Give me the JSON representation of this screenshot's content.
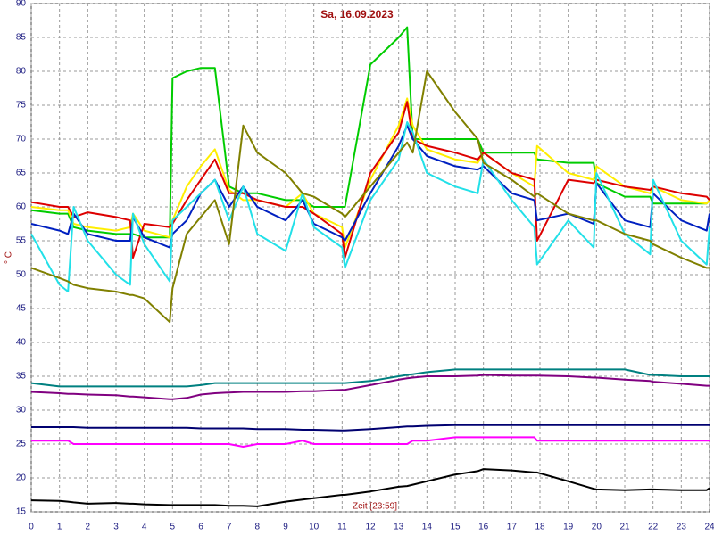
{
  "chart_data": {
    "type": "line",
    "title": "Sa, 16.09.2023",
    "x_label": "Zeit [23:59]",
    "y_label": "° C",
    "x": [
      0,
      1,
      1.3,
      1.5,
      2,
      3,
      3.5,
      3.6,
      4,
      4.9,
      5,
      5.5,
      6,
      6.5,
      7,
      7.5,
      8,
      9,
      9.6,
      10,
      11,
      11.1,
      12,
      13,
      13.3,
      13.5,
      14,
      15,
      15.8,
      16,
      17,
      17.8,
      17.9,
      19,
      19.9,
      20,
      21,
      21.9,
      22,
      23,
      23.9,
      24
    ],
    "xlim": [
      0,
      24
    ],
    "xticks": [
      0,
      1,
      2,
      3,
      4,
      5,
      6,
      7,
      8,
      9,
      10,
      11,
      12,
      13,
      14,
      15,
      16,
      17,
      18,
      19,
      20,
      21,
      22,
      23,
      24
    ],
    "ylim": [
      15,
      90
    ],
    "yticks": [
      15,
      20,
      25,
      30,
      35,
      40,
      45,
      50,
      55,
      60,
      65,
      70,
      75,
      80,
      85,
      90
    ],
    "grid": true,
    "series": [
      {
        "color": "#00cc00",
        "values": [
          59.5,
          59,
          59,
          57,
          56.5,
          56,
          56,
          56,
          55.5,
          55.5,
          79,
          80,
          80.5,
          80.5,
          63,
          62,
          62,
          61,
          61,
          60,
          60,
          60,
          81,
          85,
          86.5,
          70,
          70,
          70,
          70,
          68,
          68,
          68,
          67,
          66.5,
          66.5,
          63.5,
          61.5,
          61.5,
          60.5,
          60.5,
          60.5,
          61
        ]
      },
      {
        "color": "#ffee00",
        "values": [
          60,
          59.5,
          59.5,
          57.5,
          57,
          56.5,
          57,
          59,
          56.5,
          55.5,
          58,
          63,
          66,
          68.5,
          62.5,
          61,
          61,
          60,
          62,
          59,
          57,
          54,
          64,
          72,
          76,
          72,
          68.5,
          67,
          66.5,
          68,
          65,
          63,
          69,
          65,
          64,
          66,
          63,
          62,
          63,
          61,
          60.5,
          61
        ]
      },
      {
        "color": "#dd0000",
        "values": [
          60.7,
          60,
          60,
          58.5,
          59.2,
          58.5,
          58,
          52.5,
          57.5,
          57,
          57.5,
          61,
          64,
          67,
          62,
          62,
          61,
          60,
          60,
          59,
          56,
          52.5,
          65,
          71,
          75.5,
          70,
          69,
          68,
          67,
          68,
          65,
          64,
          55,
          64,
          63.5,
          64,
          63,
          62.5,
          63,
          62,
          61.5,
          61
        ]
      },
      {
        "color": "#0020c0",
        "values": [
          57.5,
          56.5,
          56,
          59,
          56,
          55,
          55,
          58.5,
          55.5,
          54,
          56,
          58,
          62,
          64,
          60,
          63,
          60,
          58,
          61,
          57.5,
          55.5,
          55,
          62,
          69,
          72,
          70,
          67.5,
          66,
          65.5,
          66,
          62,
          61,
          58,
          59,
          57.5,
          63.5,
          58,
          57,
          62,
          58,
          56.5,
          59
        ]
      },
      {
        "color": "#22e0e8",
        "values": [
          56,
          48.5,
          47.5,
          60,
          55,
          50,
          48.5,
          59,
          54.5,
          49,
          58,
          60,
          62,
          64,
          58,
          63,
          56,
          53.5,
          62,
          57,
          54,
          51,
          61,
          67,
          72.5,
          71,
          65,
          63,
          62,
          67,
          61,
          57,
          51.5,
          58,
          54,
          65,
          56,
          53,
          64,
          55,
          51.5,
          57
        ]
      },
      {
        "color": "#808000",
        "values": [
          51,
          49.5,
          49,
          48.5,
          48,
          47.5,
          47,
          47,
          46.5,
          43,
          48,
          56,
          58.5,
          61,
          54.5,
          72,
          68,
          65,
          62,
          61.5,
          59,
          58.5,
          63,
          68,
          69.5,
          68,
          80,
          74,
          70,
          66.5,
          64,
          61.5,
          62,
          59,
          58,
          58,
          56,
          55,
          54.5,
          52.5,
          51,
          51
        ]
      },
      {
        "color": "#008080",
        "values": [
          34,
          33.5,
          33.5,
          33.5,
          33.5,
          33.5,
          33.5,
          33.5,
          33.5,
          33.5,
          33.5,
          33.5,
          33.7,
          34,
          34,
          34,
          34,
          34,
          34,
          34,
          34,
          34,
          34.3,
          35,
          35.2,
          35.3,
          35.6,
          36,
          36,
          36,
          36,
          36,
          36,
          36,
          36,
          36,
          36,
          35.2,
          35.2,
          35,
          35,
          35
        ]
      },
      {
        "color": "#800080",
        "values": [
          32.7,
          32.5,
          32.4,
          32.4,
          32.3,
          32.2,
          32,
          32,
          31.9,
          31.6,
          31.6,
          31.8,
          32.3,
          32.5,
          32.6,
          32.7,
          32.7,
          32.7,
          32.8,
          32.8,
          33,
          33,
          33.7,
          34.5,
          34.7,
          34.8,
          35,
          35,
          35.1,
          35.2,
          35.1,
          35.1,
          35.1,
          35,
          34.8,
          34.8,
          34.5,
          34.3,
          34.2,
          33.9,
          33.6,
          33.6
        ]
      },
      {
        "color": "#000070",
        "values": [
          27.5,
          27.5,
          27.5,
          27.5,
          27.4,
          27.4,
          27.4,
          27.4,
          27.4,
          27.4,
          27.4,
          27.4,
          27.3,
          27.3,
          27.3,
          27.3,
          27.2,
          27.2,
          27.1,
          27.1,
          27,
          27,
          27.2,
          27.5,
          27.6,
          27.6,
          27.7,
          27.8,
          27.8,
          27.8,
          27.8,
          27.8,
          27.8,
          27.8,
          27.8,
          27.8,
          27.8,
          27.8,
          27.8,
          27.8,
          27.8,
          27.8
        ]
      },
      {
        "color": "#ff00ff",
        "values": [
          25.5,
          25.5,
          25.5,
          25,
          25,
          25,
          25,
          25,
          25,
          25,
          25,
          25,
          25,
          25,
          25,
          24.6,
          25,
          25,
          25.5,
          25,
          25,
          25,
          25,
          25,
          25,
          25.5,
          25.5,
          26,
          26,
          26,
          26,
          26,
          25.5,
          25.5,
          25.5,
          25.5,
          25.5,
          25.5,
          25.5,
          25.5,
          25.5,
          25.5
        ]
      },
      {
        "color": "#000000",
        "values": [
          16.7,
          16.6,
          16.5,
          16.4,
          16.2,
          16.3,
          16.2,
          16.2,
          16.1,
          16,
          16,
          16,
          16,
          16,
          15.9,
          15.9,
          15.8,
          16.5,
          16.8,
          17,
          17.5,
          17.5,
          18,
          18.7,
          18.8,
          19,
          19.5,
          20.5,
          21,
          21.3,
          21.1,
          20.8,
          20.8,
          19.5,
          18.4,
          18.3,
          18.2,
          18.3,
          18.3,
          18.2,
          18.2,
          18.5
        ]
      }
    ]
  }
}
